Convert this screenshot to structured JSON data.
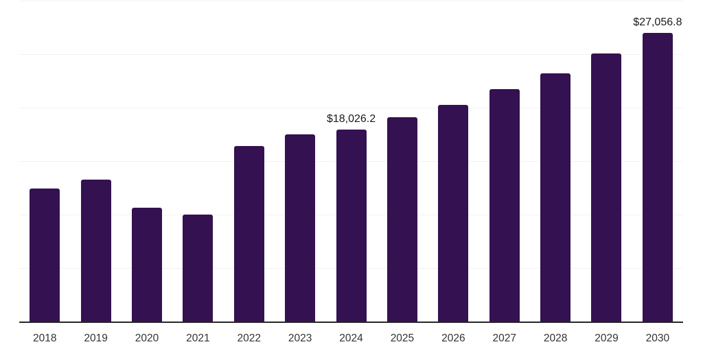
{
  "chart_data": {
    "type": "bar",
    "title": "",
    "xlabel": "",
    "ylabel": "",
    "categories": [
      "2018",
      "2019",
      "2020",
      "2021",
      "2022",
      "2023",
      "2024",
      "2025",
      "2026",
      "2027",
      "2028",
      "2029",
      "2030"
    ],
    "values": [
      12500,
      13350,
      10700,
      10050,
      16450,
      17550,
      18026.2,
      19150,
      20350,
      21800,
      23250,
      25100,
      27056.8
    ],
    "data_labels": {
      "2024": "$18,026.2",
      "2030": "$27,056.8"
    },
    "ylim": [
      0,
      30000
    ],
    "gridline_step": 5000,
    "grid": true,
    "legend_position": "none",
    "bar_color": "#341150",
    "gridline_color": "#f2f2f2",
    "axis_line_color": "#262626",
    "tick_label_color": "#333333",
    "data_label_color": "#1a1a1a"
  }
}
